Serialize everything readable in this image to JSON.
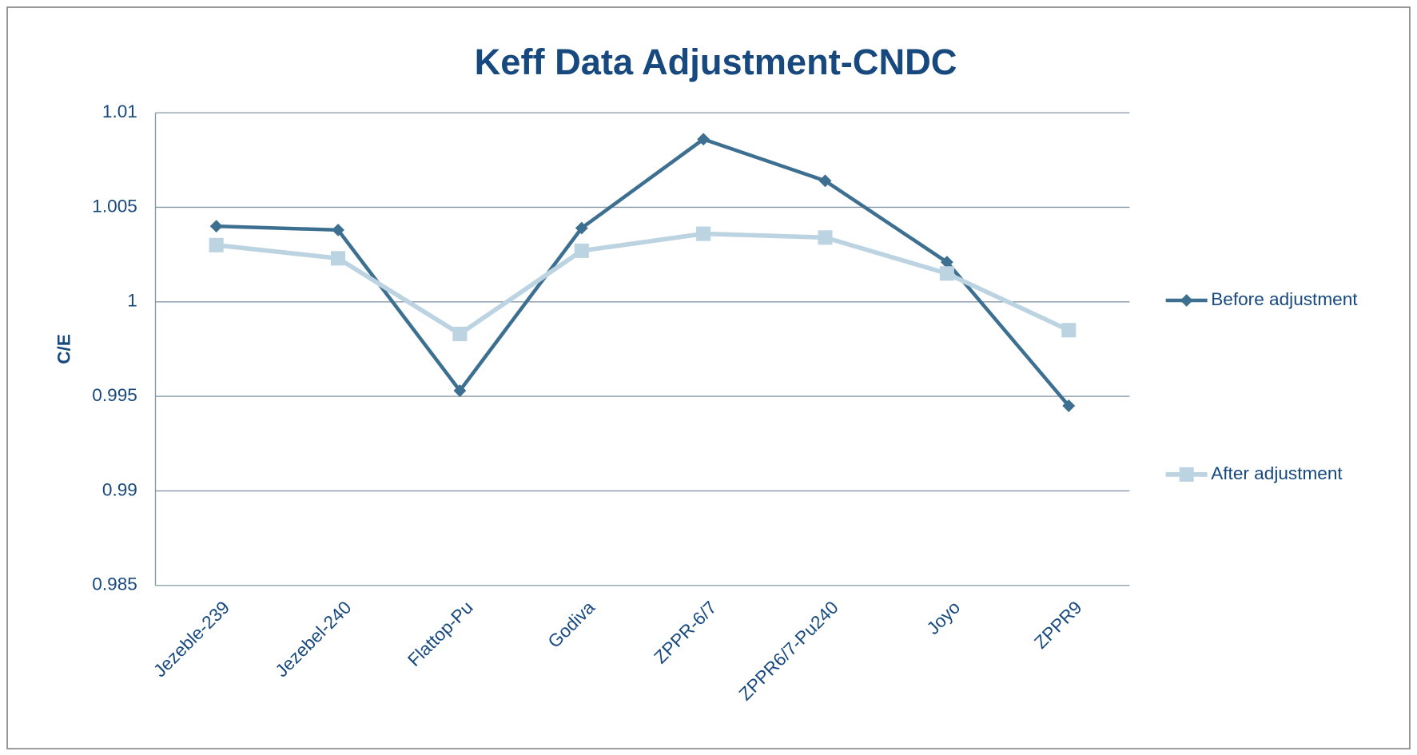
{
  "chart_data": {
    "type": "line",
    "title": "Keff Data Adjustment-CNDC",
    "y_label": "C/E",
    "categories": [
      "Jezeble-239",
      "Jezebel-240",
      "Flattop-Pu",
      "Godiva",
      "ZPPR-6/7",
      "ZPPR6/7-Pu240",
      "Joyo",
      "ZPPR9"
    ],
    "series": [
      {
        "name": "Before adjustment",
        "color": "#3d7090",
        "marker": "diamond",
        "values": [
          1.004,
          1.0038,
          0.9953,
          1.0039,
          1.0086,
          1.0064,
          1.0021,
          0.9945
        ]
      },
      {
        "name": "After adjustment",
        "color": "#bcd3e2",
        "marker": "square",
        "values": [
          1.003,
          1.0023,
          0.9983,
          1.0027,
          1.0036,
          1.0034,
          1.0015,
          0.9985
        ]
      }
    ],
    "ylim": [
      0.985,
      1.01
    ],
    "yticks": [
      0.985,
      0.99,
      0.995,
      1,
      1.005,
      1.01
    ],
    "grid": true,
    "legend": "right"
  }
}
